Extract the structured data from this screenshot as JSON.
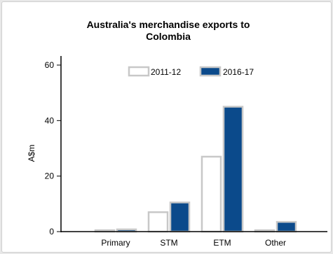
{
  "chart_data": {
    "type": "bar",
    "title_lines": [
      "Australia's merchandise exports to",
      "Colombia"
    ],
    "xlabel": "",
    "ylabel": "A$m",
    "ylim": [
      0,
      60
    ],
    "yticks": [
      0,
      20,
      40,
      60
    ],
    "grid": false,
    "legend_position": "top-center",
    "categories": [
      "Primary",
      "STM",
      "ETM",
      "Other"
    ],
    "series": [
      {
        "name": "2011-12",
        "values": [
          0.5,
          7,
          27,
          0.5
        ],
        "fill": "#ffffff",
        "stroke": "#c8c8c8"
      },
      {
        "name": "2016-17",
        "values": [
          0.8,
          10.5,
          45,
          3.5
        ],
        "fill": "#0b4a8b",
        "stroke": "#c8c8c8"
      }
    ]
  }
}
